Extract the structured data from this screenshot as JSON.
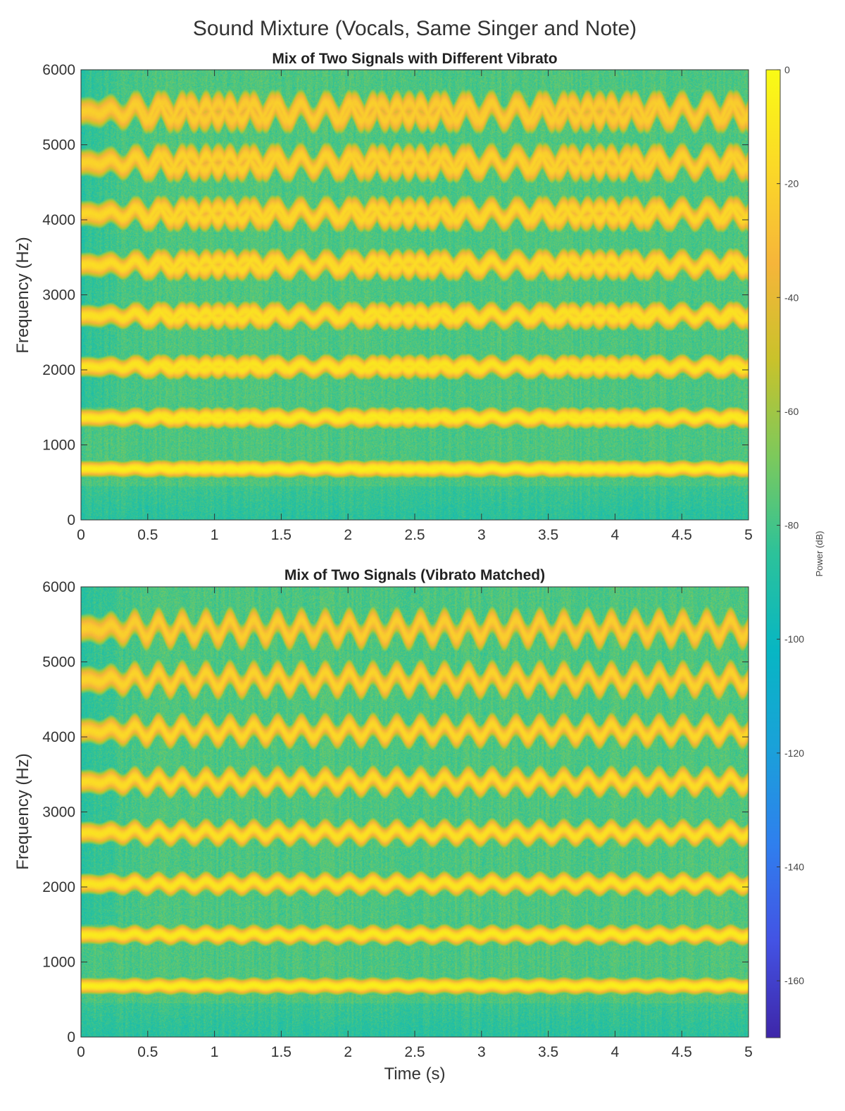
{
  "figure": {
    "suptitle": "Sound Mixture (Vocals, Same Singer and Note)"
  },
  "chart_data": [
    {
      "type": "heatmap",
      "title": "Mix of Two Signals with Different Vibrato",
      "xlabel": "",
      "ylabel": "Frequency (Hz)",
      "xlim": [
        0,
        5
      ],
      "ylim": [
        0,
        6000
      ],
      "xticks": [
        "0",
        "0.5",
        "1",
        "1.5",
        "2",
        "2.5",
        "3",
        "3.5",
        "4",
        "4.5",
        "5"
      ],
      "yticks": [
        "0",
        "1000",
        "2000",
        "3000",
        "4000",
        "5000",
        "6000"
      ],
      "fundamental_hz": 680,
      "harmonics_hz": [
        680,
        1360,
        2040,
        2720,
        3400,
        4080,
        4760,
        5440
      ],
      "vibrato": "two mixed signals with different vibrato rates",
      "vibrato_rate_hz": [
        5.6,
        4.9
      ],
      "vibrato_depth_percent": 2.2,
      "power_range_db": [
        -170,
        0
      ]
    },
    {
      "type": "heatmap",
      "title": "Mix of Two Signals (Vibrato Matched)",
      "xlabel": "Time (s)",
      "ylabel": "Frequency (Hz)",
      "xlim": [
        0,
        5
      ],
      "ylim": [
        0,
        6000
      ],
      "xticks": [
        "0",
        "0.5",
        "1",
        "1.5",
        "2",
        "2.5",
        "3",
        "3.5",
        "4",
        "4.5",
        "5"
      ],
      "yticks": [
        "0",
        "1000",
        "2000",
        "3000",
        "4000",
        "5000",
        "6000"
      ],
      "fundamental_hz": 680,
      "harmonics_hz": [
        680,
        1360,
        2040,
        2720,
        3400,
        4080,
        4760,
        5440
      ],
      "vibrato": "matched vibrato",
      "vibrato_rate_hz": [
        5.6
      ],
      "vibrato_depth_percent": 2.2,
      "power_range_db": [
        -170,
        0
      ]
    }
  ],
  "colorbar": {
    "label": "Power (dB)",
    "range": [
      -170,
      0
    ],
    "ticks": [
      "0",
      "-20",
      "-40",
      "-60",
      "-80",
      "-100",
      "-120",
      "-140",
      "-160"
    ],
    "colormap": [
      "#3e26a8",
      "#4353e4",
      "#2f7fee",
      "#1aa1d9",
      "#07b6c3",
      "#2cc29a",
      "#7cc95c",
      "#c9c22b",
      "#f6b53a",
      "#fbd927",
      "#f9fb15"
    ]
  }
}
